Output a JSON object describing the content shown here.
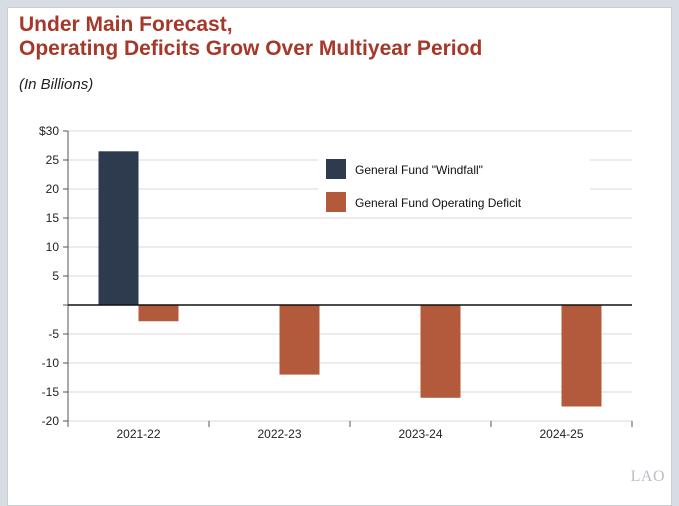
{
  "header": {
    "title_line1": "Under Main Forecast,",
    "title_line2": "Operating Deficits Grow Over Multiyear Period",
    "subtitle": "(In Billions)"
  },
  "logo": "LAO",
  "colors": {
    "windfall": "#2e3a4d",
    "deficit": "#b35a3c",
    "title": "#a6382a"
  },
  "chart_data": {
    "type": "bar",
    "categories": [
      "2021-22",
      "2022-23",
      "2023-24",
      "2024-25"
    ],
    "series": [
      {
        "name": "General Fund \"Windfall\"",
        "values": [
          26.5,
          null,
          null,
          null
        ]
      },
      {
        "name": "General Fund Operating Deficit",
        "values": [
          -2.8,
          -12,
          -16,
          -17.5
        ]
      }
    ],
    "ylim": [
      -20,
      30
    ],
    "yticks": [
      30,
      25,
      20,
      15,
      10,
      5,
      0,
      -5,
      -10,
      -15,
      -20
    ],
    "ytick_labels": [
      "$30",
      "25",
      "20",
      "15",
      "10",
      "5",
      "",
      "-5",
      "-10",
      "-15",
      "-20"
    ],
    "legend_position": "top-right",
    "grid": true
  }
}
